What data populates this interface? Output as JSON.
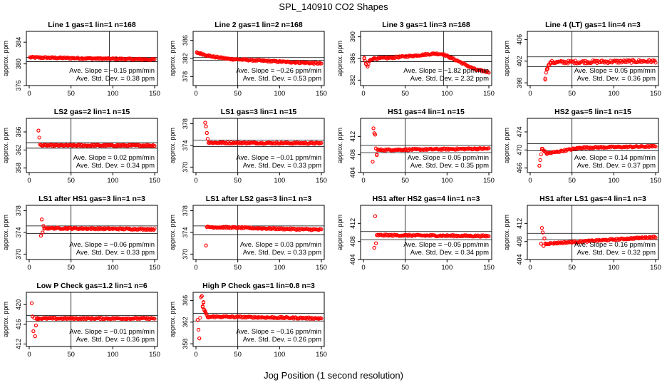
{
  "title": "SPL_140910  CO2 Shapes",
  "x_label": "Jog Position (1 second resolution)",
  "y_label": "approx. ppm",
  "slope_prefix": "Ave. Slope = ",
  "slope_unit": " ppm/min",
  "std_prefix": "Ave. Std. Dev. = ",
  "std_unit": " ppm",
  "colors": {
    "points": "#ff0000",
    "frame": "#000000"
  },
  "chart_data": [
    {
      "type": "scatter",
      "title": "Line 1 gas=1 lin=1 n=168",
      "xlim": [
        0,
        150
      ],
      "xticks": [
        0,
        50,
        100,
        150
      ],
      "ylim": [
        376,
        386
      ],
      "yticks": [
        376,
        380,
        384
      ],
      "hlines": [
        381.2,
        380.4
      ],
      "vline": 96,
      "slope": "−0.15",
      "std": "0.38",
      "x": [
        1,
        150
      ],
      "y": [
        381.2,
        380.8
      ],
      "shape": "linear"
    },
    {
      "type": "scatter",
      "title": "Line 2 gas=1 lin=2 n=168",
      "xlim": [
        0,
        150
      ],
      "xticks": [
        0,
        50,
        100,
        150
      ],
      "ylim": [
        376,
        388
      ],
      "yticks": [
        378,
        382,
        386
      ],
      "hlines": [
        382.2,
        381.6
      ],
      "vline": 50,
      "slope": "−0.26",
      "std": "0.53",
      "x": [
        1,
        5,
        20,
        40,
        60,
        80,
        100,
        150
      ],
      "y": [
        383.3,
        383.1,
        382.4,
        381.9,
        381.7,
        381.5,
        381.3,
        380.9
      ],
      "shape": "curve"
    },
    {
      "type": "scatter",
      "title": "Line 3 gas=1 lin=3 n=168",
      "xlim": [
        0,
        150
      ],
      "xticks": [
        0,
        50,
        100,
        150
      ],
      "ylim": [
        381,
        391
      ],
      "yticks": [
        382,
        386,
        390
      ],
      "hlines": [
        386.6,
        385.4
      ],
      "vline": 96,
      "slope": "−1.82",
      "std": "2.32",
      "x": [
        1,
        3,
        5,
        7,
        9,
        12,
        30,
        60,
        85,
        95,
        105,
        115,
        125,
        135,
        150
      ],
      "y": [
        386.0,
        385.0,
        384.5,
        385.5,
        385.8,
        386.0,
        386.1,
        386.5,
        386.9,
        386.8,
        386.1,
        385.4,
        384.6,
        383.9,
        383.5
      ],
      "shape": "curve"
    },
    {
      "type": "scatter",
      "title": "Line 4 (LT) gas=1 lin=4 n=3",
      "xlim": [
        0,
        150
      ],
      "xticks": [
        0,
        50,
        100,
        150
      ],
      "ylim": [
        397.5,
        407.5
      ],
      "yticks": [
        398,
        402,
        406
      ],
      "hlines": [
        402.8,
        401.0
      ],
      "vline": 50,
      "slope": "0.05",
      "std": "0.36",
      "x": [
        18,
        20,
        22,
        25,
        150
      ],
      "y": [
        398.8,
        400.6,
        401.2,
        401.8,
        402.0
      ],
      "shape": "noisy"
    },
    {
      "type": "scatter",
      "title": "LS2 gas=2 lin=1 n=15",
      "xlim": [
        0,
        150
      ],
      "xticks": [
        0,
        50,
        100,
        150
      ],
      "ylim": [
        357,
        369
      ],
      "yticks": [
        358,
        362,
        366
      ],
      "hlines": [
        363.6,
        362.4
      ],
      "vline": 50,
      "slope": "0.02",
      "std": "0.34",
      "x": [
        11,
        13,
        15,
        150
      ],
      "y": [
        366.3,
        363.2,
        363.0,
        363.0
      ],
      "shape": "settle"
    },
    {
      "type": "scatter",
      "title": "LS1 gas=3 lin=1 n=15",
      "xlim": [
        0,
        150
      ],
      "xticks": [
        0,
        50,
        100,
        150
      ],
      "ylim": [
        369,
        379
      ],
      "yticks": [
        370,
        374,
        378
      ],
      "hlines": [
        375.0,
        373.8
      ],
      "vline": 50,
      "slope": "−0.01",
      "std": "0.33",
      "x": [
        11,
        12,
        13,
        14,
        15,
        150
      ],
      "y": [
        378.2,
        377.5,
        376.3,
        375.2,
        374.5,
        374.4
      ],
      "shape": "settle"
    },
    {
      "type": "scatter",
      "title": "HS1 gas=4 lin=1 n=15",
      "xlim": [
        0,
        150
      ],
      "xticks": [
        0,
        50,
        100,
        150
      ],
      "ylim": [
        404,
        416
      ],
      "yticks": [
        404,
        408,
        412
      ],
      "hlines": [
        410.0,
        408.4
      ],
      "vline": 50,
      "slope": "0.05",
      "std": "0.35",
      "x": [
        11,
        12,
        13,
        14,
        15,
        16,
        17,
        150
      ],
      "y": [
        406.4,
        413.8,
        412.7,
        412.4,
        409.3,
        408.0,
        409.0,
        409.3
      ],
      "shape": "settle"
    },
    {
      "type": "scatter",
      "title": "HS2 gas=5 lin=1 n=15",
      "xlim": [
        0,
        150
      ],
      "xticks": [
        0,
        50,
        100,
        150
      ],
      "ylim": [
        465,
        477
      ],
      "yticks": [
        466,
        470,
        474
      ],
      "hlines": [
        471.4,
        469.8
      ],
      "vline": 50,
      "slope": "0.14",
      "std": "0.37",
      "x": [
        11,
        14,
        20,
        60,
        150
      ],
      "y": [
        466.5,
        470.3,
        469.2,
        470.5,
        470.8
      ],
      "shape": "curve"
    },
    {
      "type": "scatter",
      "title": "LS1 after HS1 gas=3 lin=1 n=3",
      "xlim": [
        0,
        150
      ],
      "xticks": [
        0,
        50,
        100,
        150
      ],
      "ylim": [
        369,
        379
      ],
      "yticks": [
        370,
        374,
        378
      ],
      "hlines": [
        375.2,
        373.8
      ],
      "vline": 50,
      "slope": "−0.06",
      "std": "0.33",
      "x": [
        14,
        15,
        16,
        17,
        18,
        150
      ],
      "y": [
        373.4,
        376.4,
        374.0,
        375.2,
        374.8,
        374.6
      ],
      "shape": "settle"
    },
    {
      "type": "scatter",
      "title": "LS1 after LS2 gas=3 lin=1 n=3",
      "xlim": [
        0,
        150
      ],
      "xticks": [
        0,
        50,
        100,
        150
      ],
      "ylim": [
        369,
        379
      ],
      "yticks": [
        370,
        374,
        378
      ],
      "hlines": [
        375.2,
        373.6
      ],
      "vline": 50,
      "slope": "0.03",
      "std": "0.33",
      "x": [
        12,
        13,
        150
      ],
      "y": [
        371.6,
        375.0,
        374.5
      ],
      "shape": "settle"
    },
    {
      "type": "scatter",
      "title": "HS1 after HS2 gas=4 lin=1 n=3",
      "xlim": [
        0,
        150
      ],
      "xticks": [
        0,
        50,
        100,
        150
      ],
      "ylim": [
        404,
        416
      ],
      "yticks": [
        404,
        408,
        412
      ],
      "hlines": [
        410.2,
        408.4
      ],
      "vline": 50,
      "slope": "−0.05",
      "std": "0.34",
      "x": [
        13,
        14,
        15,
        16,
        150
      ],
      "y": [
        406.6,
        413.6,
        407.6,
        409.4,
        409.2
      ],
      "shape": "settle"
    },
    {
      "type": "scatter",
      "title": "HS1 after LS1 gas=4 lin=1 n=3",
      "xlim": [
        0,
        150
      ],
      "xticks": [
        0,
        50,
        100,
        150
      ],
      "ylim": [
        404,
        416
      ],
      "yticks": [
        404,
        408,
        412
      ],
      "hlines": [
        409.8,
        408.4
      ],
      "vline": 50,
      "slope": "0.16",
      "std": "0.32",
      "x": [
        13,
        14,
        15,
        16,
        17,
        18,
        150
      ],
      "y": [
        407.5,
        411.0,
        410.0,
        407.0,
        408.7,
        407.5,
        409.0
      ],
      "shape": "settle"
    },
    {
      "type": "scatter",
      "title": "Low P Check gas=1.2 lin=1 n=6",
      "xlim": [
        0,
        150
      ],
      "xticks": [
        0,
        50,
        100,
        150
      ],
      "ylim": [
        411.5,
        422.5
      ],
      "yticks": [
        412,
        416,
        420
      ],
      "hlines": [
        417.8,
        416.6
      ],
      "vline": 50,
      "slope": "−0.01",
      "std": "0.36",
      "x": [
        3,
        4,
        5,
        6,
        7,
        8,
        9,
        10,
        150
      ],
      "y": [
        420.3,
        417.6,
        414.6,
        417.3,
        413.6,
        415.8,
        417.2,
        417.2,
        417.2
      ],
      "shape": "settle"
    },
    {
      "type": "scatter",
      "title": "High P Check gas=1 lin=0.8 n=3",
      "xlim": [
        0,
        150
      ],
      "xticks": [
        0,
        50,
        100,
        150
      ],
      "ylim": [
        357.5,
        367.5
      ],
      "yticks": [
        358,
        362,
        366
      ],
      "hlines": [
        363.6,
        362.2
      ],
      "vline": 50,
      "slope": "−0.16",
      "std": "0.26",
      "x": [
        2,
        3,
        4,
        6,
        7,
        8,
        9,
        10,
        11,
        12,
        14,
        20,
        30,
        150
      ],
      "y": [
        362.4,
        360.6,
        359.0,
        366.6,
        366.8,
        364.8,
        365.6,
        364.2,
        364.0,
        363.6,
        362.9,
        363.0,
        363.0,
        362.7
      ],
      "shape": "settle"
    }
  ]
}
